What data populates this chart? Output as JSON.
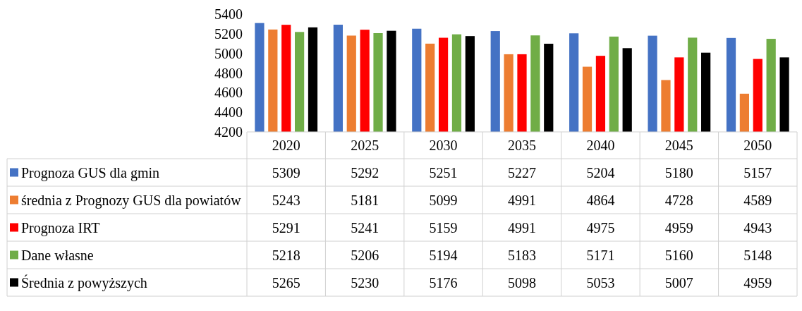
{
  "chart_data": {
    "type": "bar",
    "categories": [
      "2020",
      "2025",
      "2030",
      "2035",
      "2040",
      "2045",
      "2050"
    ],
    "series": [
      {
        "name": "Prognoza GUS dla gmin",
        "color": "#4472c4",
        "values": [
          5309,
          5292,
          5251,
          5227,
          5204,
          5180,
          5157
        ]
      },
      {
        "name": "średnia z Prognozy GUS dla powiatów",
        "color": "#ed7d31",
        "values": [
          5243,
          5181,
          5099,
          4991,
          4864,
          4728,
          4589
        ]
      },
      {
        "name": "Prognoza IRT",
        "color": "#ff0000",
        "values": [
          5291,
          5241,
          5159,
          4991,
          4975,
          4959,
          4943
        ]
      },
      {
        "name": "Dane własne",
        "color": "#70ad47",
        "values": [
          5218,
          5206,
          5194,
          5183,
          5171,
          5160,
          5148
        ]
      },
      {
        "name": "Średnia z powyższych",
        "color": "#000000",
        "values": [
          5265,
          5230,
          5176,
          5098,
          5053,
          5007,
          4959
        ]
      }
    ],
    "ylim": [
      4200,
      5400
    ],
    "yticks": [
      4200,
      4400,
      4600,
      4800,
      5000,
      5200,
      5400
    ],
    "grid": false,
    "data_labels": true,
    "legend": "bottom"
  }
}
